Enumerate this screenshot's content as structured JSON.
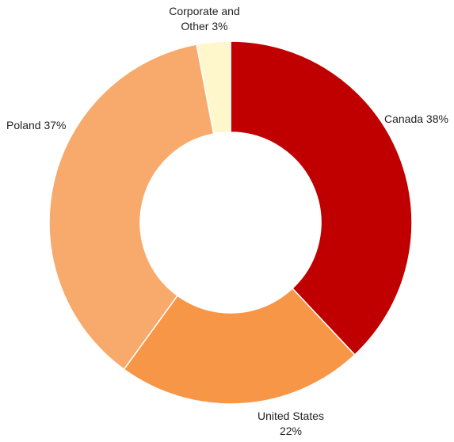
{
  "chart_data": {
    "type": "pie",
    "variant": "donut",
    "title": "",
    "legend": "none",
    "slices": [
      {
        "label": "Canada",
        "value": 38,
        "color": "#C00000",
        "label_lines": [
          "Canada 38%"
        ]
      },
      {
        "label": "United States",
        "value": 22,
        "color": "#F79646",
        "label_lines": [
          "United States",
          "22%"
        ]
      },
      {
        "label": "Poland",
        "value": 37,
        "color": "#F7AA6B",
        "label_lines": [
          "Poland 37%"
        ]
      },
      {
        "label": "Corporate and Other",
        "value": 3,
        "color": "#FFF7CC",
        "label_lines": [
          "Corporate and",
          "Other 3%"
        ]
      }
    ]
  }
}
